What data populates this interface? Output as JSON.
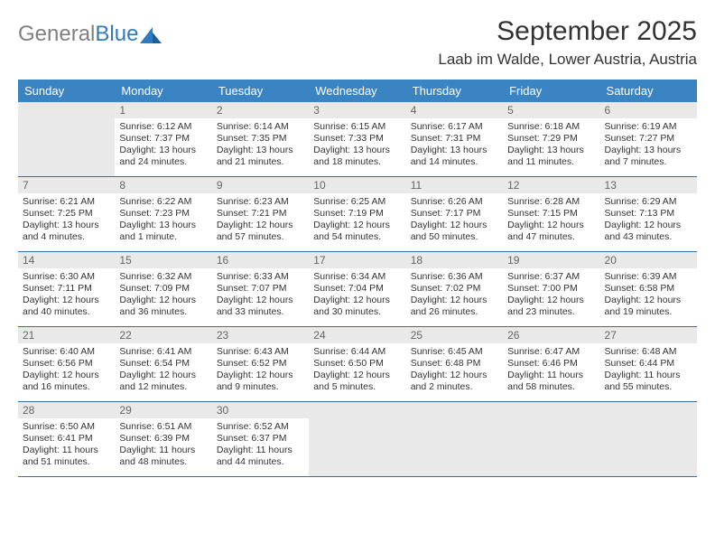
{
  "branding": {
    "general": "General",
    "blue": "Blue",
    "logo_color": "#2f7bbf"
  },
  "header": {
    "month": "September 2025",
    "location": "Laab im Walde, Lower Austria, Austria"
  },
  "colors": {
    "header_bg": "#3b84c4",
    "header_fg": "#ffffff",
    "row_divider": "#2f6fa8",
    "daynum_bg": "#e9e9e9",
    "text": "#333333"
  },
  "daynames": [
    "Sunday",
    "Monday",
    "Tuesday",
    "Wednesday",
    "Thursday",
    "Friday",
    "Saturday"
  ],
  "weeks": [
    [
      null,
      {
        "n": "1",
        "sr": "Sunrise: 6:12 AM",
        "ss": "Sunset: 7:37 PM",
        "d1": "Daylight: 13 hours",
        "d2": "and 24 minutes."
      },
      {
        "n": "2",
        "sr": "Sunrise: 6:14 AM",
        "ss": "Sunset: 7:35 PM",
        "d1": "Daylight: 13 hours",
        "d2": "and 21 minutes."
      },
      {
        "n": "3",
        "sr": "Sunrise: 6:15 AM",
        "ss": "Sunset: 7:33 PM",
        "d1": "Daylight: 13 hours",
        "d2": "and 18 minutes."
      },
      {
        "n": "4",
        "sr": "Sunrise: 6:17 AM",
        "ss": "Sunset: 7:31 PM",
        "d1": "Daylight: 13 hours",
        "d2": "and 14 minutes."
      },
      {
        "n": "5",
        "sr": "Sunrise: 6:18 AM",
        "ss": "Sunset: 7:29 PM",
        "d1": "Daylight: 13 hours",
        "d2": "and 11 minutes."
      },
      {
        "n": "6",
        "sr": "Sunrise: 6:19 AM",
        "ss": "Sunset: 7:27 PM",
        "d1": "Daylight: 13 hours",
        "d2": "and 7 minutes."
      }
    ],
    [
      {
        "n": "7",
        "sr": "Sunrise: 6:21 AM",
        "ss": "Sunset: 7:25 PM",
        "d1": "Daylight: 13 hours",
        "d2": "and 4 minutes."
      },
      {
        "n": "8",
        "sr": "Sunrise: 6:22 AM",
        "ss": "Sunset: 7:23 PM",
        "d1": "Daylight: 13 hours",
        "d2": "and 1 minute."
      },
      {
        "n": "9",
        "sr": "Sunrise: 6:23 AM",
        "ss": "Sunset: 7:21 PM",
        "d1": "Daylight: 12 hours",
        "d2": "and 57 minutes."
      },
      {
        "n": "10",
        "sr": "Sunrise: 6:25 AM",
        "ss": "Sunset: 7:19 PM",
        "d1": "Daylight: 12 hours",
        "d2": "and 54 minutes."
      },
      {
        "n": "11",
        "sr": "Sunrise: 6:26 AM",
        "ss": "Sunset: 7:17 PM",
        "d1": "Daylight: 12 hours",
        "d2": "and 50 minutes."
      },
      {
        "n": "12",
        "sr": "Sunrise: 6:28 AM",
        "ss": "Sunset: 7:15 PM",
        "d1": "Daylight: 12 hours",
        "d2": "and 47 minutes."
      },
      {
        "n": "13",
        "sr": "Sunrise: 6:29 AM",
        "ss": "Sunset: 7:13 PM",
        "d1": "Daylight: 12 hours",
        "d2": "and 43 minutes."
      }
    ],
    [
      {
        "n": "14",
        "sr": "Sunrise: 6:30 AM",
        "ss": "Sunset: 7:11 PM",
        "d1": "Daylight: 12 hours",
        "d2": "and 40 minutes."
      },
      {
        "n": "15",
        "sr": "Sunrise: 6:32 AM",
        "ss": "Sunset: 7:09 PM",
        "d1": "Daylight: 12 hours",
        "d2": "and 36 minutes."
      },
      {
        "n": "16",
        "sr": "Sunrise: 6:33 AM",
        "ss": "Sunset: 7:07 PM",
        "d1": "Daylight: 12 hours",
        "d2": "and 33 minutes."
      },
      {
        "n": "17",
        "sr": "Sunrise: 6:34 AM",
        "ss": "Sunset: 7:04 PM",
        "d1": "Daylight: 12 hours",
        "d2": "and 30 minutes."
      },
      {
        "n": "18",
        "sr": "Sunrise: 6:36 AM",
        "ss": "Sunset: 7:02 PM",
        "d1": "Daylight: 12 hours",
        "d2": "and 26 minutes."
      },
      {
        "n": "19",
        "sr": "Sunrise: 6:37 AM",
        "ss": "Sunset: 7:00 PM",
        "d1": "Daylight: 12 hours",
        "d2": "and 23 minutes."
      },
      {
        "n": "20",
        "sr": "Sunrise: 6:39 AM",
        "ss": "Sunset: 6:58 PM",
        "d1": "Daylight: 12 hours",
        "d2": "and 19 minutes."
      }
    ],
    [
      {
        "n": "21",
        "sr": "Sunrise: 6:40 AM",
        "ss": "Sunset: 6:56 PM",
        "d1": "Daylight: 12 hours",
        "d2": "and 16 minutes."
      },
      {
        "n": "22",
        "sr": "Sunrise: 6:41 AM",
        "ss": "Sunset: 6:54 PM",
        "d1": "Daylight: 12 hours",
        "d2": "and 12 minutes."
      },
      {
        "n": "23",
        "sr": "Sunrise: 6:43 AM",
        "ss": "Sunset: 6:52 PM",
        "d1": "Daylight: 12 hours",
        "d2": "and 9 minutes."
      },
      {
        "n": "24",
        "sr": "Sunrise: 6:44 AM",
        "ss": "Sunset: 6:50 PM",
        "d1": "Daylight: 12 hours",
        "d2": "and 5 minutes."
      },
      {
        "n": "25",
        "sr": "Sunrise: 6:45 AM",
        "ss": "Sunset: 6:48 PM",
        "d1": "Daylight: 12 hours",
        "d2": "and 2 minutes."
      },
      {
        "n": "26",
        "sr": "Sunrise: 6:47 AM",
        "ss": "Sunset: 6:46 PM",
        "d1": "Daylight: 11 hours",
        "d2": "and 58 minutes."
      },
      {
        "n": "27",
        "sr": "Sunrise: 6:48 AM",
        "ss": "Sunset: 6:44 PM",
        "d1": "Daylight: 11 hours",
        "d2": "and 55 minutes."
      }
    ],
    [
      {
        "n": "28",
        "sr": "Sunrise: 6:50 AM",
        "ss": "Sunset: 6:41 PM",
        "d1": "Daylight: 11 hours",
        "d2": "and 51 minutes."
      },
      {
        "n": "29",
        "sr": "Sunrise: 6:51 AM",
        "ss": "Sunset: 6:39 PM",
        "d1": "Daylight: 11 hours",
        "d2": "and 48 minutes."
      },
      {
        "n": "30",
        "sr": "Sunrise: 6:52 AM",
        "ss": "Sunset: 6:37 PM",
        "d1": "Daylight: 11 hours",
        "d2": "and 44 minutes."
      },
      null,
      null,
      null,
      null
    ]
  ]
}
